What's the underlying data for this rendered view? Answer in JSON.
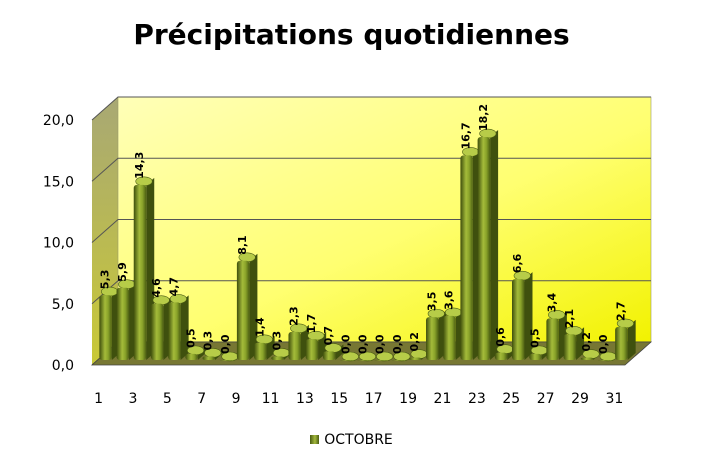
{
  "chart_data": {
    "type": "bar",
    "title": "Précipitations quotidiennes",
    "categories": [
      "1",
      "2",
      "3",
      "4",
      "5",
      "6",
      "7",
      "8",
      "9",
      "10",
      "11",
      "12",
      "13",
      "14",
      "15",
      "16",
      "17",
      "18",
      "19",
      "20",
      "21",
      "22",
      "23",
      "24",
      "25",
      "26",
      "27",
      "28",
      "29",
      "30",
      "31"
    ],
    "x_tick_labels": [
      "1",
      "",
      "3",
      "",
      "5",
      "",
      "7",
      "",
      "9",
      "",
      "11",
      "",
      "13",
      "",
      "15",
      "",
      "17",
      "",
      "19",
      "",
      "21",
      "",
      "23",
      "",
      "25",
      "",
      "27",
      "",
      "29",
      "",
      "31"
    ],
    "series": [
      {
        "name": "OCTOBRE",
        "values": [
          5.3,
          5.9,
          14.3,
          4.6,
          4.7,
          0.5,
          0.3,
          0.0,
          8.1,
          1.4,
          0.3,
          2.3,
          1.7,
          0.7,
          0.0,
          0.0,
          0.0,
          0.0,
          0.2,
          3.5,
          3.6,
          16.7,
          18.2,
          0.6,
          6.6,
          0.5,
          3.4,
          2.1,
          0.2,
          0.0,
          2.7
        ],
        "data_labels": [
          "5,3",
          "5,9",
          "14,3",
          "4,6",
          "4,7",
          "0,5",
          "0,3",
          "0,0",
          "8,1",
          "1,4",
          "0,3",
          "2,3",
          "1,7",
          "0,7",
          "0,0",
          "0,0",
          "0,0",
          "0,0",
          "0,2",
          "3,5",
          "3,6",
          "16,7",
          "18,2",
          "0,6",
          "6,6",
          "0,5",
          "3,4",
          "2,1",
          "0,2",
          "0,0",
          "2,7"
        ]
      }
    ],
    "ylim": [
      0,
      20
    ],
    "y_ticks": [
      0,
      5,
      10,
      15,
      20
    ],
    "y_tick_labels": [
      "0,0",
      "5,0",
      "10,0",
      "15,0",
      "20,0"
    ],
    "grid": true,
    "legend_position": "bottom",
    "colors": {
      "bar": "#8aa32a",
      "bar_dark": "#4a5c12",
      "wall_top": "#ffff9e",
      "wall_bottom": "#f5f500",
      "floor": "#6f6f2c"
    }
  }
}
